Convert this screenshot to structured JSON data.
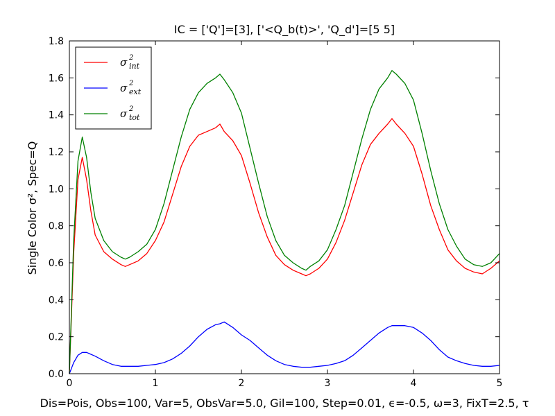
{
  "chart_data": {
    "type": "line",
    "title": "IC = ['Q']=[3], ['<Q_b(t)>', 'Q_d']=[5 5]",
    "xlabel": "Dis=Pois, Obs=100, Var=5, ObsVar=5.0, Gil=100, Step=0.01, ϵ=-0.5, ω=3, FixT=2.5, τ",
    "ylabel": "Single Color σ², Spec=Q",
    "xlim": [
      0,
      5
    ],
    "ylim": [
      0,
      1.8
    ],
    "xticks": [
      0,
      1,
      2,
      3,
      4,
      5
    ],
    "xtick_labels": [
      "0",
      "1",
      "2",
      "3",
      "4",
      "5"
    ],
    "yticks": [
      0.0,
      0.2,
      0.4,
      0.6,
      0.8,
      1.0,
      1.2,
      1.4,
      1.6,
      1.8
    ],
    "ytick_labels": [
      "0.0",
      "0.2",
      "0.4",
      "0.6",
      "0.8",
      "1.0",
      "1.2",
      "1.4",
      "1.6",
      "1.8"
    ],
    "grid": false,
    "legend_position": "top-left",
    "series": [
      {
        "name": "σ²int",
        "legend_symbol": "σ",
        "legend_sup": "2",
        "legend_sub": "int",
        "color": "#ff0000",
        "x": [
          0,
          0.05,
          0.1,
          0.15,
          0.2,
          0.25,
          0.3,
          0.4,
          0.5,
          0.6,
          0.65,
          0.7,
          0.8,
          0.9,
          1.0,
          1.1,
          1.2,
          1.3,
          1.4,
          1.5,
          1.6,
          1.7,
          1.75,
          1.8,
          1.9,
          2.0,
          2.1,
          2.2,
          2.3,
          2.4,
          2.5,
          2.6,
          2.7,
          2.75,
          2.8,
          2.9,
          3.0,
          3.1,
          3.2,
          3.3,
          3.4,
          3.5,
          3.6,
          3.7,
          3.75,
          3.8,
          3.9,
          4.0,
          4.1,
          4.2,
          4.3,
          4.4,
          4.5,
          4.6,
          4.7,
          4.8,
          4.9,
          5.0
        ],
        "y": [
          0.0,
          0.65,
          1.05,
          1.17,
          1.05,
          0.88,
          0.75,
          0.66,
          0.62,
          0.59,
          0.58,
          0.59,
          0.61,
          0.65,
          0.72,
          0.82,
          0.97,
          1.12,
          1.23,
          1.29,
          1.31,
          1.33,
          1.35,
          1.31,
          1.26,
          1.18,
          1.03,
          0.87,
          0.74,
          0.64,
          0.59,
          0.56,
          0.54,
          0.53,
          0.54,
          0.57,
          0.62,
          0.71,
          0.83,
          0.98,
          1.13,
          1.24,
          1.3,
          1.35,
          1.38,
          1.35,
          1.3,
          1.23,
          1.08,
          0.91,
          0.78,
          0.67,
          0.61,
          0.57,
          0.55,
          0.54,
          0.57,
          0.61
        ]
      },
      {
        "name": "σ²ext",
        "legend_symbol": "σ",
        "legend_sup": "2",
        "legend_sub": "ext",
        "color": "#0000ff",
        "x": [
          0,
          0.05,
          0.1,
          0.15,
          0.2,
          0.3,
          0.4,
          0.5,
          0.6,
          0.7,
          0.8,
          0.9,
          1.0,
          1.1,
          1.2,
          1.3,
          1.4,
          1.5,
          1.6,
          1.7,
          1.75,
          1.8,
          1.9,
          2.0,
          2.1,
          2.2,
          2.3,
          2.4,
          2.5,
          2.6,
          2.7,
          2.8,
          2.9,
          3.0,
          3.1,
          3.2,
          3.3,
          3.4,
          3.5,
          3.6,
          3.7,
          3.75,
          3.8,
          3.9,
          4.0,
          4.1,
          4.2,
          4.3,
          4.4,
          4.5,
          4.6,
          4.7,
          4.8,
          4.9,
          5.0
        ],
        "y": [
          0.0,
          0.06,
          0.1,
          0.115,
          0.115,
          0.095,
          0.07,
          0.05,
          0.04,
          0.04,
          0.04,
          0.045,
          0.05,
          0.06,
          0.08,
          0.11,
          0.15,
          0.2,
          0.24,
          0.265,
          0.27,
          0.28,
          0.25,
          0.21,
          0.18,
          0.14,
          0.1,
          0.07,
          0.05,
          0.04,
          0.035,
          0.035,
          0.04,
          0.045,
          0.055,
          0.07,
          0.1,
          0.14,
          0.18,
          0.22,
          0.25,
          0.26,
          0.26,
          0.26,
          0.25,
          0.22,
          0.18,
          0.13,
          0.09,
          0.07,
          0.055,
          0.045,
          0.04,
          0.04,
          0.045
        ]
      },
      {
        "name": "σ²tot",
        "legend_symbol": "σ",
        "legend_sup": "2",
        "legend_sub": "tot",
        "color": "#008000",
        "x": [
          0,
          0.05,
          0.1,
          0.15,
          0.2,
          0.25,
          0.3,
          0.4,
          0.5,
          0.6,
          0.65,
          0.7,
          0.8,
          0.9,
          1.0,
          1.1,
          1.2,
          1.3,
          1.4,
          1.5,
          1.6,
          1.7,
          1.75,
          1.8,
          1.9,
          2.0,
          2.1,
          2.2,
          2.3,
          2.4,
          2.5,
          2.6,
          2.7,
          2.75,
          2.8,
          2.9,
          3.0,
          3.1,
          3.2,
          3.3,
          3.4,
          3.5,
          3.6,
          3.7,
          3.75,
          3.8,
          3.9,
          4.0,
          4.1,
          4.2,
          4.3,
          4.4,
          4.5,
          4.6,
          4.7,
          4.8,
          4.9,
          5.0
        ],
        "y": [
          0.0,
          0.72,
          1.15,
          1.28,
          1.17,
          0.98,
          0.84,
          0.72,
          0.66,
          0.63,
          0.62,
          0.63,
          0.66,
          0.7,
          0.78,
          0.92,
          1.1,
          1.28,
          1.43,
          1.52,
          1.57,
          1.6,
          1.62,
          1.59,
          1.52,
          1.41,
          1.22,
          1.03,
          0.85,
          0.72,
          0.64,
          0.6,
          0.57,
          0.56,
          0.58,
          0.61,
          0.67,
          0.78,
          0.91,
          1.09,
          1.27,
          1.43,
          1.54,
          1.6,
          1.64,
          1.62,
          1.57,
          1.48,
          1.3,
          1.1,
          0.92,
          0.78,
          0.69,
          0.62,
          0.59,
          0.58,
          0.6,
          0.65
        ]
      }
    ]
  }
}
